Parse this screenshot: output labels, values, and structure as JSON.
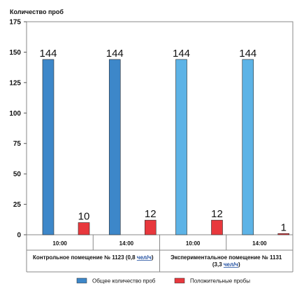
{
  "chart_data": {
    "type": "bar",
    "ylabel": "Количество проб",
    "ylim": [
      0,
      175
    ],
    "yticks": [
      0,
      25,
      50,
      75,
      100,
      125,
      150,
      175
    ],
    "groups": [
      {
        "label_line1_pre": "Контрольное помещение № 1123 (0,8 ",
        "label_line1_unit": "чел/ч",
        "label_line1_post": ")",
        "label_line2_pre": "",
        "label_line2_unit": "",
        "label_line2_post": "",
        "times": [
          "10:00",
          "14:00"
        ]
      },
      {
        "label_line1_pre": "Экспериментальное помещение № 1131",
        "label_line1_unit": "",
        "label_line1_post": "",
        "label_line2_pre": "(3,3 ",
        "label_line2_unit": "чел/ч",
        "label_line2_post": ")",
        "times": [
          "10:00",
          "14:00"
        ]
      }
    ],
    "categories": [
      "Контрольное помещение № 1123 — 10:00",
      "Контрольное помещение № 1123 — 14:00",
      "Экспериментальное помещение № 1131 — 10:00",
      "Экспериментальное помещение № 1131 — 14:00"
    ],
    "series": [
      {
        "name": "Общее количество проб",
        "values": [
          144,
          144,
          144,
          144
        ],
        "colors": [
          "#3d87c9",
          "#3d87c9",
          "#5db3e6",
          "#5db3e6"
        ]
      },
      {
        "name": "Положительные пробы",
        "values": [
          10,
          12,
          12,
          1
        ],
        "colors": [
          "#e8383d",
          "#e8383d",
          "#e8383d",
          "#e8383d"
        ]
      }
    ],
    "legend": [
      {
        "name": "Общее количество проб",
        "color": "#3d87c9"
      },
      {
        "name": "Положительные пробы",
        "color": "#e8383d"
      }
    ],
    "legend_position": "bottom",
    "grid": false
  }
}
